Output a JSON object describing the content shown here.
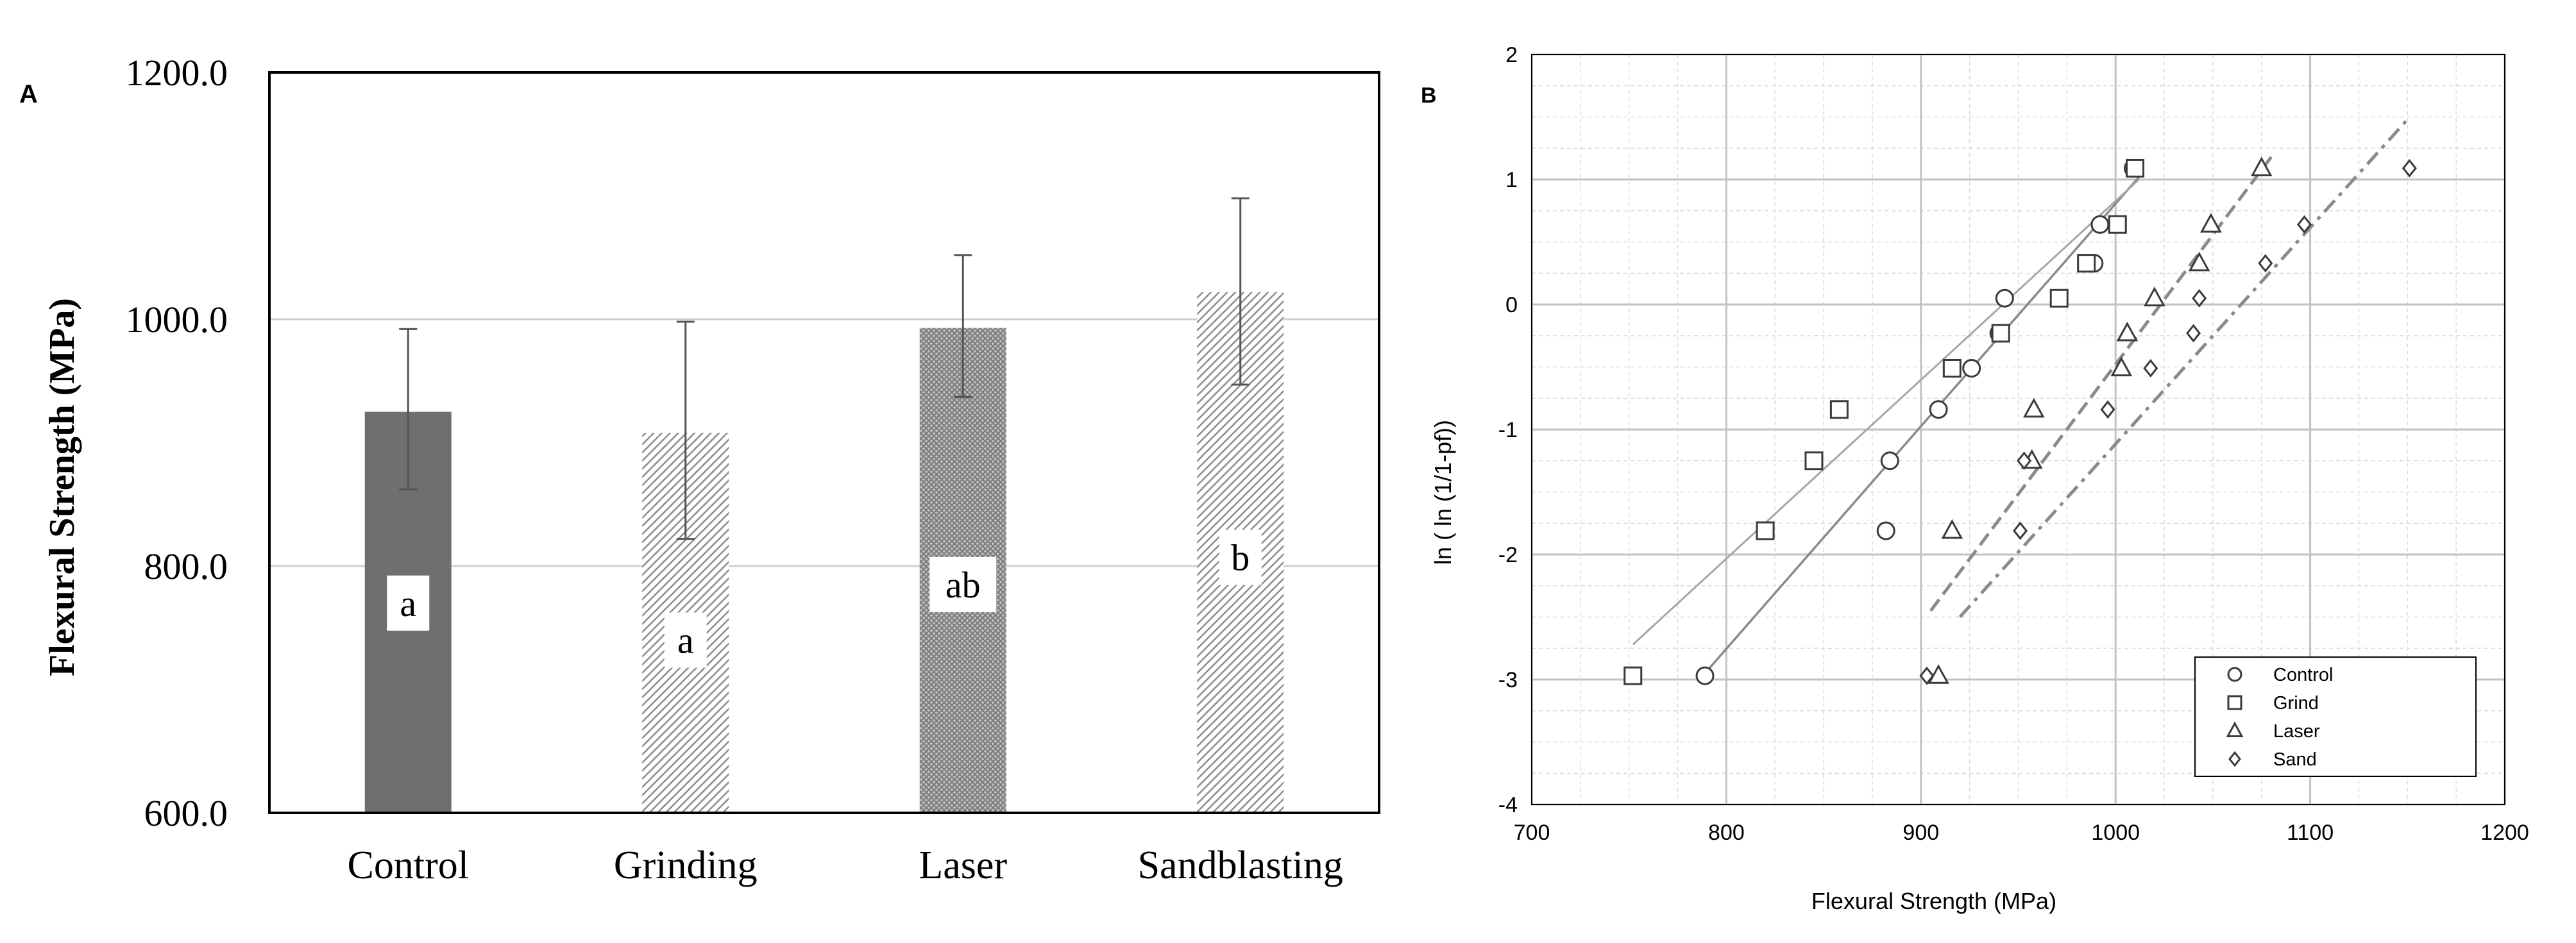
{
  "chart_data": [
    {
      "panel_label": "A",
      "type": "bar",
      "categories": [
        "Control",
        "Grinding",
        "Laser",
        "Sandblasting"
      ],
      "values": [
        925,
        908,
        993,
        1022
      ],
      "error_upper": [
        992,
        998,
        1052,
        1098
      ],
      "error_lower": [
        862,
        822,
        937,
        947
      ],
      "group_letters": [
        "a",
        "a",
        "ab",
        "b"
      ],
      "fills": [
        "solid",
        "hatch",
        "crosshatch",
        "hatch"
      ],
      "ylabel": "Flexural Strength (MPa)",
      "xlabel": "",
      "ylim": [
        600,
        1200
      ],
      "yticks": [
        "600.0",
        "800.0",
        "1000.0",
        "1200.0"
      ],
      "ytick_values": [
        600,
        800,
        1000,
        1200
      ],
      "colors": {
        "solid": "#6f6f6f",
        "hatch": "#9a9a9a",
        "grid": "#cfcfcf"
      }
    },
    {
      "panel_label": "B",
      "type": "scatter",
      "xlabel": "Flexural Strength (MPa)",
      "ylabel": "ln ( ln (1/1-pf))",
      "xlim": [
        700,
        1200
      ],
      "ylim": [
        -4,
        2
      ],
      "xticks": [
        "700",
        "800",
        "900",
        "1000",
        "1100",
        "1200"
      ],
      "xtick_values": [
        700,
        800,
        900,
        1000,
        1100,
        1200
      ],
      "yticks": [
        "-4",
        "-3",
        "-2",
        "-1",
        "0",
        "1",
        "2"
      ],
      "ytick_values": [
        -4,
        -3,
        -2,
        -1,
        0,
        1,
        2
      ],
      "series": [
        {
          "name": "Control",
          "marker": "circle",
          "points": [
            [
              789,
              -2.97
            ],
            [
              882,
              -1.81
            ],
            [
              884,
              -1.25
            ],
            [
              909,
              -0.84
            ],
            [
              926,
              -0.51
            ],
            [
              940,
              -0.23
            ],
            [
              943,
              0.05
            ],
            [
              986,
              0.33
            ],
            [
              989,
              0.33
            ],
            [
              992,
              0.64
            ],
            [
              1009,
              1.09
            ]
          ],
          "fit": {
            "x": [
              789,
              1012
            ],
            "y": [
              -2.95,
              1.02
            ],
            "style": "solid"
          }
        },
        {
          "name": "Grind",
          "marker": "square",
          "points": [
            [
              752,
              -2.97
            ],
            [
              820,
              -1.81
            ],
            [
              845,
              -1.25
            ],
            [
              858,
              -0.84
            ],
            [
              916,
              -0.51
            ],
            [
              941,
              -0.23
            ],
            [
              971,
              0.05
            ],
            [
              985,
              0.33
            ],
            [
              1001,
              0.64
            ],
            [
              1010,
              1.09
            ]
          ],
          "fit": {
            "x": [
              752,
              1012
            ],
            "y": [
              -2.72,
              1.0
            ],
            "style": "solid-light"
          }
        },
        {
          "name": "Laser",
          "marker": "triangle",
          "points": [
            [
              909,
              -2.97
            ],
            [
              916,
              -1.81
            ],
            [
              957,
              -1.25
            ],
            [
              958,
              -0.84
            ],
            [
              1003,
              -0.51
            ],
            [
              1006,
              -0.23
            ],
            [
              1020,
              0.05
            ],
            [
              1043,
              0.33
            ],
            [
              1049,
              0.64
            ],
            [
              1075,
              1.09
            ]
          ],
          "fit": {
            "x": [
              905,
              1080
            ],
            "y": [
              -2.45,
              1.18
            ],
            "style": "dashed"
          }
        },
        {
          "name": "Sand",
          "marker": "diamond",
          "points": [
            [
              903,
              -2.97
            ],
            [
              951,
              -1.81
            ],
            [
              953,
              -1.25
            ],
            [
              996,
              -0.84
            ],
            [
              1018,
              -0.51
            ],
            [
              1040,
              -0.23
            ],
            [
              1043,
              0.05
            ],
            [
              1077,
              0.33
            ],
            [
              1097,
              0.64
            ],
            [
              1151,
              1.09
            ]
          ],
          "fit": {
            "x": [
              920,
              1150
            ],
            "y": [
              -2.5,
              1.48
            ],
            "style": "dashdot"
          }
        }
      ],
      "legend_position": "bottom-right"
    }
  ]
}
